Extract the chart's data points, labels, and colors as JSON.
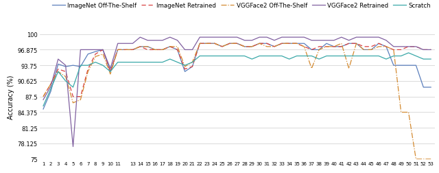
{
  "x_labels": [
    "1",
    "2",
    "3",
    "4",
    "5",
    "6",
    "7",
    "8",
    "9",
    "10",
    "11",
    "13",
    "14",
    "15",
    "16",
    "17",
    "18",
    "19",
    "20",
    "21",
    "22",
    "23",
    "24",
    "25",
    "26",
    "27",
    "28",
    "29",
    "30",
    "31",
    "32",
    "33",
    "34",
    "35",
    "36",
    "37",
    "38",
    "39",
    "40",
    "41",
    "42",
    "43",
    "44",
    "45",
    "46",
    "47",
    "48",
    "49",
    "50",
    "51",
    "52",
    "53"
  ],
  "x_values": [
    1,
    2,
    3,
    4,
    5,
    6,
    7,
    8,
    9,
    10,
    11,
    13,
    14,
    15,
    16,
    17,
    18,
    19,
    20,
    21,
    22,
    23,
    24,
    25,
    26,
    27,
    28,
    29,
    30,
    31,
    32,
    33,
    34,
    35,
    36,
    37,
    38,
    39,
    40,
    41,
    42,
    43,
    44,
    45,
    46,
    47,
    48,
    49,
    50,
    51,
    52,
    53
  ],
  "imagenet_shelf": [
    85.0,
    88.5,
    94.0,
    93.5,
    93.75,
    93.5,
    96.0,
    96.5,
    96.875,
    92.5,
    96.875,
    96.875,
    97.5,
    97.5,
    96.875,
    96.875,
    97.5,
    96.875,
    92.5,
    93.5,
    98.125,
    98.125,
    98.125,
    97.5,
    98.125,
    98.125,
    97.5,
    97.5,
    98.125,
    98.125,
    97.5,
    98.125,
    98.125,
    98.125,
    98.125,
    96.875,
    96.875,
    98.125,
    97.5,
    97.5,
    98.125,
    98.125,
    96.875,
    96.875,
    98.125,
    97.5,
    93.75,
    93.75,
    93.75,
    93.75,
    89.375,
    89.375
  ],
  "imagenet_retrained": [
    87.5,
    90.0,
    93.0,
    92.5,
    87.5,
    87.5,
    93.0,
    96.0,
    96.875,
    92.5,
    96.875,
    96.875,
    97.5,
    96.875,
    96.875,
    96.875,
    97.5,
    96.875,
    93.0,
    93.5,
    98.125,
    98.125,
    98.125,
    97.5,
    98.125,
    98.125,
    97.5,
    97.5,
    98.125,
    98.125,
    97.5,
    98.125,
    98.125,
    98.125,
    97.5,
    96.875,
    97.5,
    97.5,
    97.5,
    97.5,
    98.125,
    98.125,
    97.5,
    97.5,
    98.125,
    97.5,
    96.875,
    96.875,
    97.5,
    97.5,
    96.875,
    96.875
  ],
  "vgg_shelf": [
    87.5,
    90.0,
    92.5,
    91.5,
    86.25,
    86.875,
    92.5,
    95.5,
    96.0,
    92.0,
    96.875,
    96.875,
    97.5,
    97.5,
    96.875,
    96.875,
    97.5,
    97.5,
    93.5,
    94.375,
    98.125,
    98.125,
    98.125,
    97.5,
    98.125,
    98.125,
    97.5,
    97.5,
    98.125,
    97.5,
    97.5,
    98.125,
    98.125,
    98.125,
    97.5,
    93.125,
    96.875,
    97.5,
    97.5,
    98.125,
    93.125,
    98.125,
    96.875,
    96.875,
    97.5,
    97.5,
    96.875,
    84.375,
    84.375,
    75.0,
    75.0,
    75.0
  ],
  "vgg_retrained": [
    86.875,
    89.5,
    95.0,
    93.75,
    77.5,
    96.875,
    96.875,
    96.875,
    96.875,
    93.125,
    98.125,
    98.125,
    99.375,
    98.75,
    98.75,
    98.75,
    99.375,
    98.75,
    96.875,
    96.875,
    99.375,
    99.375,
    99.375,
    99.375,
    99.375,
    99.375,
    98.75,
    98.75,
    99.375,
    99.375,
    98.75,
    99.375,
    99.375,
    99.375,
    99.375,
    98.75,
    98.75,
    98.75,
    98.75,
    99.375,
    98.75,
    99.375,
    99.375,
    99.375,
    99.375,
    98.75,
    97.5,
    97.5,
    97.5,
    97.5,
    96.875,
    96.875
  ],
  "scratch": [
    85.625,
    89.0,
    92.5,
    90.625,
    89.375,
    93.75,
    93.75,
    94.375,
    93.75,
    92.5,
    94.375,
    94.375,
    94.375,
    94.375,
    94.375,
    94.375,
    95.0,
    94.375,
    93.75,
    94.375,
    95.625,
    95.625,
    95.625,
    95.625,
    95.625,
    95.625,
    95.625,
    95.0,
    95.625,
    95.625,
    95.625,
    95.625,
    95.0,
    95.625,
    95.625,
    95.625,
    95.0,
    95.625,
    95.625,
    95.625,
    95.625,
    95.625,
    95.625,
    95.625,
    95.625,
    95.0,
    95.625,
    95.625,
    96.25,
    95.625,
    95.0,
    95.0
  ],
  "color_imagenet_shelf": "#5b7fbc",
  "color_imagenet_retrained": "#d94040",
  "color_vgg_shelf": "#d48a30",
  "color_vgg_retrained": "#8060a0",
  "color_scratch": "#3aa8a8",
  "ylim": [
    75,
    100
  ],
  "yticks": [
    75,
    78.125,
    81.25,
    84.375,
    87.5,
    90.625,
    93.75,
    96.875,
    100
  ],
  "ytick_labels": [
    "75",
    "78.125",
    "81.25",
    "84.375",
    "87.5",
    "90.625",
    "93.75",
    "96.875",
    "100"
  ],
  "ylabel": "Accuracy (%)",
  "legend_labels": [
    "ImageNet Off-The-Shelf",
    "ImageNet Retrained",
    "VGGFace2 Off-The-Shelf",
    "VGGFace2 Retrained",
    "Scratch"
  ]
}
